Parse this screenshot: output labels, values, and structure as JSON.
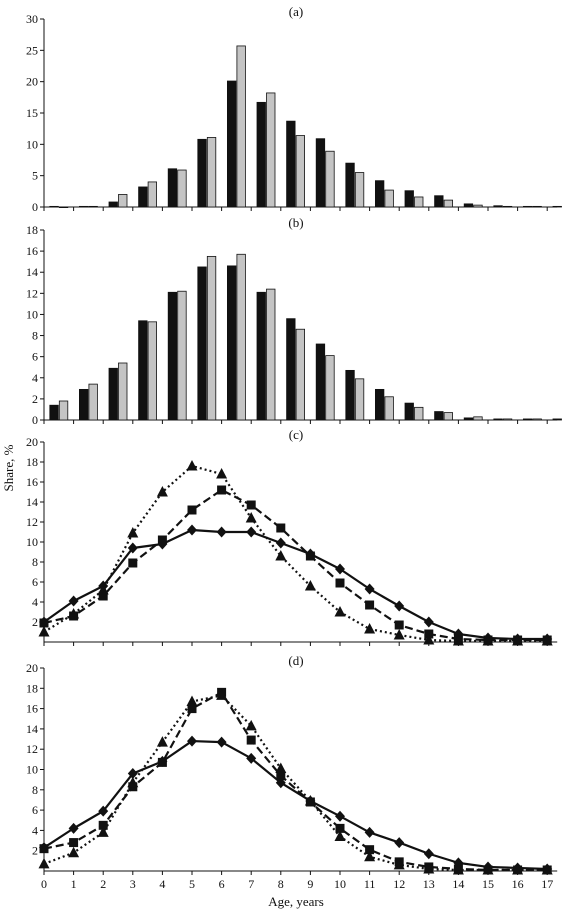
{
  "figure": {
    "ylabel": "Share, %",
    "xlabel": "Age, years"
  },
  "chart_data": [
    {
      "panel": "(a)",
      "type": "bar",
      "categories": [
        "0",
        "1",
        "2",
        "3",
        "4",
        "5",
        "6",
        "7",
        "8",
        "9",
        "10",
        "11",
        "12",
        "13",
        "14",
        "15",
        "16",
        "17"
      ],
      "ylim": [
        0,
        30
      ],
      "yticks": [
        "0",
        "5",
        "10",
        "15",
        "20",
        "25",
        "30"
      ],
      "series": [
        {
          "color": "#111111",
          "values": [
            0.1,
            0.1,
            0.8,
            3.2,
            6.1,
            10.8,
            20.1,
            16.7,
            13.7,
            10.9,
            7.0,
            4.2,
            2.6,
            1.8,
            0.5,
            0.2,
            0.1,
            0.1
          ]
        },
        {
          "color": "#c4c4c4",
          "values": [
            0.0,
            0.1,
            2.0,
            4.0,
            5.9,
            11.1,
            25.7,
            18.2,
            11.4,
            8.9,
            5.5,
            2.7,
            1.6,
            1.1,
            0.3,
            0.1,
            0.1,
            0.1
          ]
        }
      ]
    },
    {
      "panel": "(b)",
      "type": "bar",
      "categories": [
        "0",
        "1",
        "2",
        "3",
        "4",
        "5",
        "6",
        "7",
        "8",
        "9",
        "10",
        "11",
        "12",
        "13",
        "14",
        "15",
        "16",
        "17"
      ],
      "ylim": [
        0,
        18
      ],
      "yticks": [
        "0",
        "2",
        "4",
        "6",
        "8",
        "10",
        "12",
        "14",
        "16",
        "18"
      ],
      "series": [
        {
          "color": "#111111",
          "values": [
            1.4,
            2.9,
            4.9,
            9.4,
            12.1,
            14.5,
            14.6,
            12.1,
            9.6,
            7.2,
            4.7,
            2.9,
            1.6,
            0.8,
            0.2,
            0.1,
            0.1,
            0.1
          ]
        },
        {
          "color": "#c4c4c4",
          "values": [
            1.8,
            3.4,
            5.4,
            9.3,
            12.2,
            15.5,
            15.7,
            12.4,
            8.6,
            6.1,
            3.9,
            2.2,
            1.2,
            0.7,
            0.3,
            0.1,
            0.1,
            0.1
          ]
        }
      ]
    },
    {
      "panel": "(c)",
      "type": "line",
      "x": [
        0,
        1,
        2,
        3,
        4,
        5,
        6,
        7,
        8,
        9,
        10,
        11,
        12,
        13,
        14,
        15,
        16,
        17
      ],
      "ylim": [
        0,
        20
      ],
      "yticks": [
        "2",
        "4",
        "6",
        "8",
        "10",
        "12",
        "14",
        "16",
        "18",
        "20"
      ],
      "series": [
        {
          "marker": "diamond",
          "dash": "solid",
          "values": [
            2.0,
            4.1,
            5.6,
            9.4,
            9.8,
            11.2,
            11.0,
            11.0,
            9.9,
            8.8,
            7.3,
            5.3,
            3.6,
            2.0,
            0.8,
            0.4,
            0.3,
            0.3
          ]
        },
        {
          "marker": "square",
          "dash": "dashed",
          "values": [
            1.9,
            2.6,
            4.6,
            7.9,
            10.2,
            13.2,
            15.2,
            13.7,
            11.4,
            8.6,
            5.9,
            3.7,
            1.7,
            0.8,
            0.3,
            0.2,
            0.2,
            0.2
          ]
        },
        {
          "marker": "triangle",
          "dash": "dotted",
          "values": [
            1.0,
            2.8,
            5.2,
            10.9,
            15.0,
            17.6,
            16.8,
            12.4,
            8.6,
            5.6,
            3.0,
            1.3,
            0.7,
            0.2,
            0.1,
            0.1,
            0.1,
            0.1
          ]
        }
      ]
    },
    {
      "panel": "(d)",
      "type": "line",
      "x": [
        0,
        1,
        2,
        3,
        4,
        5,
        6,
        7,
        8,
        9,
        10,
        11,
        12,
        13,
        14,
        15,
        16,
        17
      ],
      "ylim": [
        0,
        20
      ],
      "yticks": [
        "2",
        "4",
        "6",
        "8",
        "10",
        "12",
        "14",
        "16",
        "18",
        "20"
      ],
      "xticks": [
        "0",
        "1",
        "2",
        "3",
        "4",
        "5",
        "6",
        "7",
        "8",
        "9",
        "10",
        "11",
        "12",
        "13",
        "14",
        "15",
        "16",
        "17"
      ],
      "series": [
        {
          "marker": "diamond",
          "dash": "solid",
          "values": [
            2.3,
            4.2,
            5.9,
            9.6,
            10.8,
            12.8,
            12.7,
            11.1,
            8.7,
            6.9,
            5.4,
            3.8,
            2.8,
            1.7,
            0.8,
            0.4,
            0.3,
            0.2
          ]
        },
        {
          "marker": "square",
          "dash": "dashed",
          "values": [
            2.2,
            2.8,
            4.5,
            8.3,
            10.7,
            16.0,
            17.6,
            12.9,
            9.4,
            6.8,
            4.2,
            2.1,
            0.9,
            0.4,
            0.2,
            0.1,
            0.1,
            0.1
          ]
        },
        {
          "marker": "triangle",
          "dash": "dotted",
          "values": [
            0.7,
            1.8,
            3.8,
            8.7,
            12.7,
            16.7,
            17.3,
            14.3,
            10.1,
            6.9,
            3.4,
            1.4,
            0.6,
            0.2,
            0.1,
            0.1,
            0.1,
            0.1
          ]
        }
      ]
    }
  ]
}
